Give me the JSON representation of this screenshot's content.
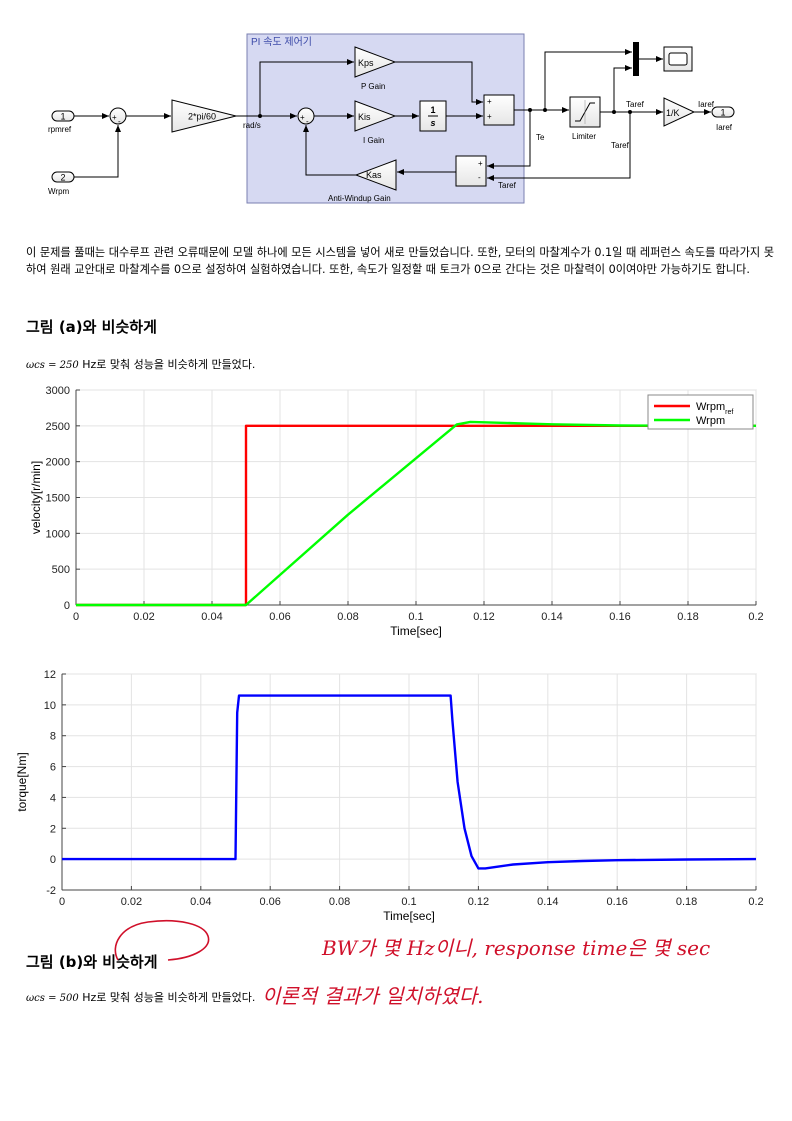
{
  "diagram": {
    "group_title": "PI 속도 제어기",
    "in1_port": "1",
    "in1_label": "rpmref",
    "in2_port": "2",
    "in2_label": "Wrpm",
    "gain_2pi": "2*pi/60",
    "signal_rads": "rad/s",
    "kps": "Kps",
    "p_gain": "P Gain",
    "kis": "Kis",
    "i_gain": "I Gain",
    "integrator_num": "1",
    "integrator_den": "s",
    "kas": "Kas",
    "anti_windup": "Anti-Windup Gain",
    "limiter": "Limiter",
    "te": "Te",
    "taref1": "Taref",
    "taref2": "Taref",
    "taref3": "Taref",
    "inv_k": "1/K",
    "iaref_sig": "Iaref",
    "out_port": "1",
    "out_label": "Iaref"
  },
  "paragraph": "이 문제를 풀때는 대수루프 관련 오류때문에 모델 하나에 모든 시스템을 넣어 새로 만들었습니다. 또한, 모터의 마찰계수가 0.1일 때 레퍼런스 속도를 따라가지 못하여 원래 교안대로 마찰계수를 0으로 설정하여 실험하였습니다. 또한, 속도가 일정할 때 토크가 0으로 간다는 것은 마찰력이 0이여야만 가능하기도 합니다.",
  "section_a": {
    "heading": "그림 (a)와 비슷하게",
    "note_math": "ωcs = 250",
    "note_text": " Hz로 맞춰 성능을 비슷하게 만들었다."
  },
  "section_b": {
    "heading": "그림 (b)와 비슷하게",
    "note_math": "ωcs = 500",
    "note_text": " Hz로 맞춰 성능을 비슷하게 만들었다."
  },
  "handwriting": {
    "line1": "BW가 몇 Hz이니, response time은 몇 sec",
    "line2": "이론적 결과가 일치하였다."
  },
  "chart_data": [
    {
      "type": "line",
      "xlabel": "Time[sec]",
      "ylabel": "velocity[r/min]",
      "xlim": [
        0,
        0.2
      ],
      "ylim": [
        0,
        3000
      ],
      "xticks": [
        "0",
        "0.02",
        "0.04",
        "0.06",
        "0.08",
        "0.1",
        "0.12",
        "0.14",
        "0.16",
        "0.18",
        "0.2"
      ],
      "yticks": [
        "0",
        "500",
        "1000",
        "1500",
        "2000",
        "2500",
        "3000"
      ],
      "grid": true,
      "legend": "top-right",
      "series": [
        {
          "name": "Wrpm_ref",
          "legend_main": "Wrpm",
          "legend_sub": "ref",
          "color": "#ff0000",
          "x": [
            0,
            0.05,
            0.05,
            0.2
          ],
          "y": [
            0,
            0,
            2500,
            2500
          ]
        },
        {
          "name": "Wrpm",
          "legend_main": "Wrpm",
          "legend_sub": "",
          "color": "#00ff00",
          "x": [
            0,
            0.05,
            0.08,
            0.112,
            0.116,
            0.12,
            0.13,
            0.14,
            0.16,
            0.2
          ],
          "y": [
            0,
            0,
            1260,
            2520,
            2555,
            2550,
            2535,
            2522,
            2505,
            2500
          ]
        }
      ]
    },
    {
      "type": "line",
      "xlabel": "Time[sec]",
      "ylabel": "torque[Nm]",
      "xlim": [
        0,
        0.2
      ],
      "ylim": [
        -2,
        12
      ],
      "xticks": [
        "0",
        "0.02",
        "0.04",
        "0.06",
        "0.08",
        "0.1",
        "0.12",
        "0.14",
        "0.16",
        "0.18",
        "0.2"
      ],
      "yticks": [
        "-2",
        "0",
        "2",
        "4",
        "6",
        "8",
        "10",
        "12"
      ],
      "grid": true,
      "series": [
        {
          "name": "",
          "color": "#0000ff",
          "x": [
            0,
            0.05,
            0.0505,
            0.051,
            0.112,
            0.1125,
            0.114,
            0.116,
            0.118,
            0.12,
            0.122,
            0.125,
            0.13,
            0.14,
            0.15,
            0.16,
            0.18,
            0.2
          ],
          "y": [
            0,
            0,
            9.5,
            10.6,
            10.6,
            9.0,
            5.0,
            2.0,
            0.2,
            -0.6,
            -0.6,
            -0.5,
            -0.35,
            -0.2,
            -0.12,
            -0.07,
            -0.02,
            0
          ]
        }
      ]
    }
  ]
}
